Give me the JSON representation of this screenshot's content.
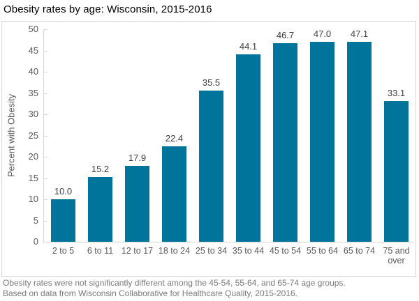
{
  "page": {
    "footnote_lines": [
      "Obesity rates were not significantly different among the 45-54, 55-64, and 65-74 age groups.",
      "Based on data from Wisconsin Collaborative for Healthcare Quality, 2015-2016."
    ]
  },
  "colors": {
    "bar": "#00749B",
    "axis": "#D6D6D6",
    "tick_text": "#595959",
    "value_label_text": "#404040",
    "footnote_text": "#7A7A7A",
    "title_text": "#000000"
  },
  "chart_data": {
    "type": "bar",
    "title": "Obesity rates by age: Wisconsin, 2015-2016",
    "categories": [
      "2 to 5",
      "6 to 11",
      "12 to 17",
      "18 to 24",
      "25 to 34",
      "35 to 44",
      "45 to 54",
      "55 to 64",
      "65 to 74",
      "75 and over"
    ],
    "values": [
      10.0,
      15.2,
      17.9,
      22.4,
      35.5,
      44.1,
      46.7,
      47.0,
      47.1,
      33.1
    ],
    "value_labels": [
      "10.0",
      "15.2",
      "17.9",
      "22.4",
      "35.5",
      "44.1",
      "46.7",
      "47.0",
      "47.1",
      "33.1"
    ],
    "xlabel": "",
    "ylabel": "Percent with Obesity",
    "ylim": [
      0,
      50
    ],
    "ytick_step": 5,
    "grid": false,
    "legend": false,
    "data_labels": true
  }
}
